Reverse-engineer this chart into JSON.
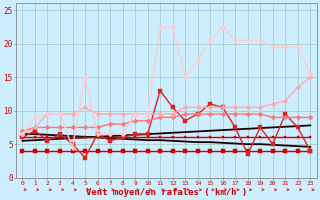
{
  "x": [
    0,
    1,
    2,
    3,
    4,
    5,
    6,
    7,
    8,
    9,
    10,
    11,
    12,
    13,
    14,
    15,
    16,
    17,
    18,
    19,
    20,
    21,
    22,
    23
  ],
  "series": [
    {
      "name": "flat_4_red",
      "color": "#cc0000",
      "alpha": 1.0,
      "linewidth": 1.0,
      "marker": "s",
      "markersize": 2.5,
      "values": [
        4,
        4,
        4,
        4,
        4,
        4,
        4,
        4,
        4,
        4,
        4,
        4,
        4,
        4,
        4,
        4,
        4,
        4,
        4,
        4,
        4,
        4,
        4,
        4
      ]
    },
    {
      "name": "dark_trend_down",
      "color": "#1a0000",
      "alpha": 1.0,
      "linewidth": 1.3,
      "marker": null,
      "markersize": 0,
      "values": [
        6.5,
        6.5,
        6.4,
        6.3,
        6.2,
        6.1,
        6.0,
        5.9,
        5.8,
        5.7,
        5.6,
        5.6,
        5.5,
        5.4,
        5.3,
        5.3,
        5.2,
        5.1,
        5.0,
        5.0,
        4.9,
        4.8,
        4.7,
        4.6
      ]
    },
    {
      "name": "dark_trend_up",
      "color": "#1a0000",
      "alpha": 1.0,
      "linewidth": 1.3,
      "marker": null,
      "markersize": 0,
      "values": [
        5.5,
        5.6,
        5.7,
        5.8,
        5.9,
        6.0,
        6.1,
        6.2,
        6.3,
        6.4,
        6.5,
        6.6,
        6.7,
        6.8,
        6.9,
        7.0,
        7.1,
        7.2,
        7.3,
        7.4,
        7.5,
        7.6,
        7.7,
        7.8
      ]
    },
    {
      "name": "red_flat_6",
      "color": "#cc0000",
      "alpha": 1.0,
      "linewidth": 1.0,
      "marker": "s",
      "markersize": 2.0,
      "values": [
        6,
        6,
        6,
        6,
        6,
        6,
        6,
        6,
        6,
        6,
        6,
        6,
        6,
        6,
        6,
        6,
        6,
        6,
        6,
        6,
        6,
        6,
        6,
        6
      ]
    },
    {
      "name": "medium_red_volatile",
      "color": "#dd2222",
      "alpha": 1.0,
      "linewidth": 1.0,
      "marker": "s",
      "markersize": 2.5,
      "values": [
        6.0,
        7.0,
        5.5,
        6.5,
        5.0,
        3.0,
        6.5,
        5.5,
        6.0,
        6.5,
        6.5,
        13.0,
        10.5,
        8.5,
        9.5,
        11.0,
        10.5,
        7.5,
        3.5,
        7.5,
        5.0,
        9.5,
        7.5,
        4.0
      ]
    },
    {
      "name": "pink_medium",
      "color": "#ff7777",
      "alpha": 1.0,
      "linewidth": 1.0,
      "marker": "D",
      "markersize": 2.5,
      "values": [
        7.0,
        7.5,
        7.5,
        7.5,
        7.5,
        7.5,
        7.5,
        8.0,
        8.0,
        8.5,
        8.5,
        9.0,
        9.0,
        9.5,
        9.5,
        9.5,
        9.5,
        9.5,
        9.5,
        9.5,
        9.0,
        9.0,
        9.0,
        9.0
      ]
    },
    {
      "name": "light_pink_trending",
      "color": "#ffaaaa",
      "alpha": 1.0,
      "linewidth": 1.0,
      "marker": "D",
      "markersize": 2.5,
      "values": [
        6.5,
        7.5,
        9.5,
        9.5,
        9.5,
        10.5,
        9.5,
        9.5,
        9.5,
        9.5,
        9.5,
        9.5,
        9.5,
        10.5,
        10.5,
        10.5,
        10.5,
        10.5,
        10.5,
        10.5,
        11.0,
        11.5,
        13.5,
        15.0
      ]
    },
    {
      "name": "lightest_pink_spiky",
      "color": "#ffcccc",
      "alpha": 1.0,
      "linewidth": 1.0,
      "marker": "D",
      "markersize": 2.5,
      "values": [
        6.5,
        9.0,
        9.5,
        9.5,
        4.5,
        15.0,
        6.5,
        6.5,
        6.5,
        9.5,
        9.5,
        22.5,
        22.5,
        15.0,
        17.5,
        20.5,
        22.5,
        20.5,
        20.5,
        20.5,
        19.5,
        19.5,
        19.5,
        15.5
      ]
    }
  ],
  "xlabel": "Vent moyen/en rafales ( km/h )",
  "xlim": [
    -0.5,
    23.5
  ],
  "ylim": [
    0,
    26
  ],
  "yticks": [
    0,
    5,
    10,
    15,
    20,
    25
  ],
  "xticks": [
    0,
    1,
    2,
    3,
    4,
    5,
    6,
    7,
    8,
    9,
    10,
    11,
    12,
    13,
    14,
    15,
    16,
    17,
    18,
    19,
    20,
    21,
    22,
    23
  ],
  "bg_color": "#cceeff",
  "grid_color": "#aacccc",
  "label_color": "#cc0000",
  "arrow_color": "#cc2222",
  "figwidth": 3.2,
  "figheight": 2.0,
  "dpi": 100
}
